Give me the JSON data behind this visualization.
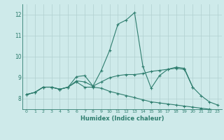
{
  "xlabel": "Humidex (Indice chaleur)",
  "x_values": [
    0,
    1,
    2,
    3,
    4,
    5,
    6,
    7,
    8,
    9,
    10,
    11,
    12,
    13,
    14,
    15,
    16,
    17,
    18,
    19,
    20,
    21,
    22,
    23
  ],
  "line1": [
    8.2,
    8.3,
    8.55,
    8.55,
    8.45,
    8.55,
    9.05,
    9.1,
    8.6,
    9.35,
    10.3,
    11.55,
    11.75,
    12.1,
    9.55,
    8.5,
    9.1,
    9.4,
    9.5,
    9.45,
    8.55,
    8.15,
    7.85,
    7.7
  ],
  "line2": [
    8.2,
    8.3,
    8.55,
    8.55,
    8.45,
    8.55,
    8.8,
    8.55,
    8.55,
    8.5,
    8.35,
    8.25,
    8.15,
    8.05,
    7.95,
    7.85,
    7.8,
    7.75,
    7.7,
    7.65,
    7.6,
    7.55,
    7.5,
    7.45
  ],
  "line3": [
    8.2,
    8.3,
    8.55,
    8.55,
    8.45,
    8.55,
    8.85,
    8.8,
    8.6,
    8.8,
    9.0,
    9.1,
    9.15,
    9.15,
    9.2,
    9.3,
    9.35,
    9.4,
    9.45,
    9.4,
    8.55,
    null,
    null,
    null
  ],
  "ylim": [
    7.5,
    12.5
  ],
  "xlim": [
    -0.5,
    23.5
  ],
  "yticks": [
    8,
    9,
    10,
    11,
    12
  ],
  "xticks": [
    0,
    1,
    2,
    3,
    4,
    5,
    6,
    7,
    8,
    9,
    10,
    11,
    12,
    13,
    14,
    15,
    16,
    17,
    18,
    19,
    20,
    21,
    22,
    23
  ],
  "line_color": "#2e7d6e",
  "bg_color": "#ceeaea",
  "grid_color": "#b0d0d0",
  "linewidth": 0.8,
  "markersize": 2.5
}
